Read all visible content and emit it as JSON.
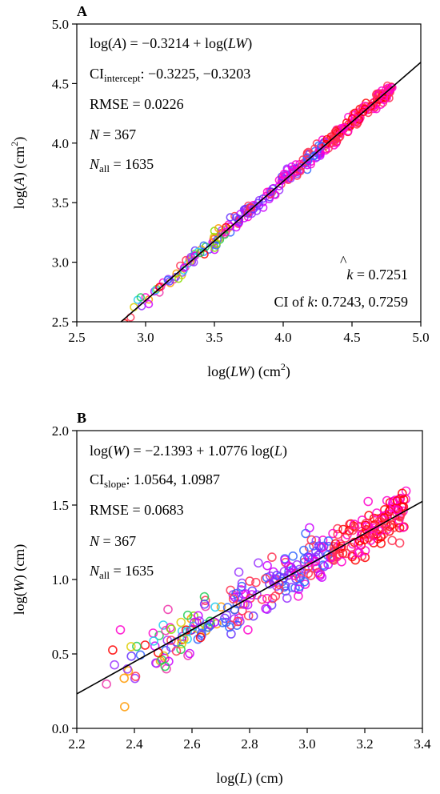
{
  "chart_data": [
    {
      "type": "scatter",
      "panel_label": "A",
      "xlabel": {
        "pre": "log(",
        "var": "LW",
        "post": ") (cm",
        "sup": "2",
        "end": ")"
      },
      "ylabel": {
        "pre": "log(",
        "var": "A",
        "post": ") (cm",
        "sup": "2",
        "end": ")"
      },
      "xlim": [
        2.5,
        5.0
      ],
      "ylim": [
        2.5,
        5.0
      ],
      "xticks": [
        "2.5",
        "3.0",
        "3.5",
        "4.0",
        "4.5",
        "5.0"
      ],
      "yticks": [
        "2.5",
        "3.0",
        "3.5",
        "4.0",
        "4.5",
        "5.0"
      ],
      "fit_line": {
        "intercept": -0.3214,
        "slope": 1.0
      },
      "points_model": {
        "x_range": [
          2.8,
          4.8
        ],
        "count": 367,
        "scatter_sd": 0.0226
      },
      "annotations": {
        "equation": {
          "lhs": "log(",
          "lhs_var": "A",
          "mid": ") = −0.3214 + log(",
          "rhs_var": "LW",
          "end": ")"
        },
        "ci_intercept": {
          "label": "CI",
          "sub": "intercept",
          "value": ": −0.3225, −0.3203"
        },
        "rmse": "RMSE = 0.0226",
        "n": {
          "var": "N",
          "value": " = 367"
        },
        "n_all": {
          "var": "N",
          "sub": "all",
          "value": " = 1635"
        },
        "k_hat": {
          "var": "k",
          "value": " = 0.7251"
        },
        "ci_k": {
          "pre": "CI of ",
          "var": "k",
          "value": ": 0.7243, 0.7259"
        }
      }
    },
    {
      "type": "scatter",
      "panel_label": "B",
      "xlabel": {
        "pre": "log(",
        "var": "L",
        "post": ") (cm)",
        "sup": "",
        "end": ""
      },
      "ylabel": {
        "pre": "log(",
        "var": "W",
        "post": ") (cm)",
        "sup": "",
        "end": ""
      },
      "xlim": [
        2.2,
        3.4
      ],
      "ylim": [
        0.0,
        2.0
      ],
      "xticks": [
        "2.2",
        "2.4",
        "2.6",
        "2.8",
        "3.0",
        "3.2",
        "3.4"
      ],
      "yticks": [
        "0.0",
        "0.5",
        "1.0",
        "1.5",
        "2.0"
      ],
      "fit_line": {
        "intercept": -2.1393,
        "slope": 1.0776
      },
      "points_model": {
        "x_range": [
          2.27,
          3.35
        ],
        "count": 367,
        "scatter_sd": 0.0683
      },
      "annotations": {
        "equation": {
          "lhs": "log(",
          "lhs_var": "W",
          "mid": ") = −2.1393 + 1.0776 log(",
          "rhs_var": "L",
          "end": ")"
        },
        "ci_slope": {
          "label": "CI",
          "sub": "slope",
          "value": ": 1.0564, 1.0987"
        },
        "rmse": "RMSE = 0.0683",
        "n": {
          "var": "N",
          "value": " = 367"
        },
        "n_all": {
          "var": "N",
          "sub": "all",
          "value": " = 1635"
        }
      }
    }
  ],
  "colors": {
    "fit_line": "#000000",
    "palette": [
      "#ff0000",
      "#ff3050",
      "#ff00cc",
      "#cc00ff",
      "#9933ff",
      "#6633ff",
      "#3366ff",
      "#22ccee",
      "#22cc55",
      "#88dd00",
      "#ddcc00",
      "#ff9900",
      "#ee33aa"
    ]
  }
}
